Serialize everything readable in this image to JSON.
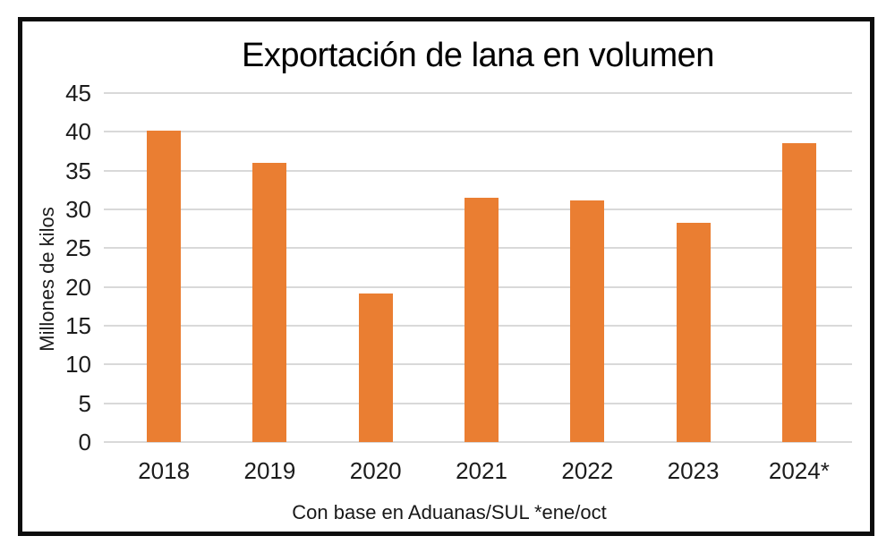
{
  "chart_data": {
    "type": "bar",
    "title": "Exportación de lana en volumen",
    "ylabel": "Millones de kilos",
    "xlabel": "Con base en Aduanas/SUL *ene/oct",
    "categories": [
      "2018",
      "2019",
      "2020",
      "2021",
      "2022",
      "2023",
      "2024*"
    ],
    "values": [
      40.1,
      36.0,
      19.1,
      31.5,
      31.1,
      28.3,
      38.5
    ],
    "ylim": [
      0,
      45
    ],
    "ytick_step": 5,
    "grid": true,
    "legend": false,
    "bar_color": "#EA7E32",
    "gridline_color": "#D9D9D9",
    "text_color": "#1C1C1C",
    "frame_color": "#0D0D0D"
  }
}
